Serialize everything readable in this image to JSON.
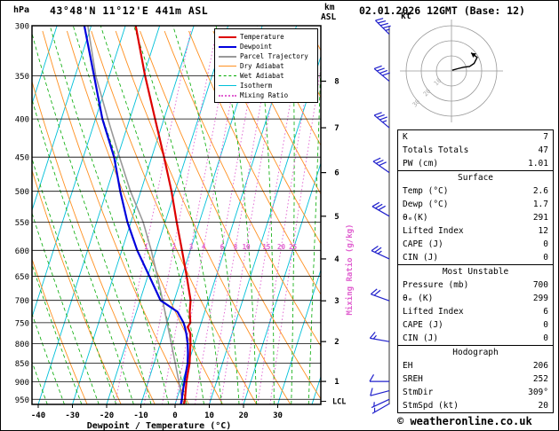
{
  "header": {
    "pressure_unit": "hPa",
    "station": "43°48'N 11°12'E 441m ASL",
    "km_label": "km",
    "asl_label": "ASL",
    "datetime": "02.01.2026 12GMT (Base: 12)"
  },
  "chart_data": {
    "type": "skewt_log_p_sounding",
    "colors": {
      "temperature": "#dd0000",
      "dewpoint": "#0000dd",
      "parcel": "#999999",
      "dry_adiabat": "#ff9020",
      "wet_adiabat": "#00aa00",
      "isotherm": "#00c0d8",
      "mixing_ratio": "#e060d0",
      "wind": "#2020cc"
    },
    "pressure_axis": {
      "unit": "hPa",
      "ticks": [
        300,
        350,
        400,
        450,
        500,
        550,
        600,
        650,
        700,
        750,
        800,
        850,
        900,
        950
      ]
    },
    "temp_axis": {
      "label": "Dewpoint / Temperature (°C)",
      "ticks": [
        -40,
        -30,
        -20,
        -10,
        0,
        10,
        20,
        30
      ]
    },
    "km_axis": {
      "ticks": [
        1,
        2,
        3,
        4,
        5,
        6,
        7,
        8
      ],
      "lcl_label": "LCL"
    },
    "mixing_ratio": {
      "label": "Mixing Ratio (g/kg)",
      "values": [
        1,
        2,
        3,
        4,
        6,
        8,
        10,
        15,
        20,
        25
      ]
    },
    "legend": [
      {
        "label": "Temperature",
        "color": "#dd0000",
        "style": "solid",
        "weight": 2
      },
      {
        "label": "Dewpoint",
        "color": "#0000dd",
        "style": "solid",
        "weight": 2
      },
      {
        "label": "Parcel Trajectory",
        "color": "#999999",
        "style": "solid",
        "weight": 2
      },
      {
        "label": "Dry Adiabat",
        "color": "#ff9020",
        "style": "solid",
        "weight": 1
      },
      {
        "label": "Wet Adiabat",
        "color": "#00aa00",
        "style": "dashed",
        "weight": 1
      },
      {
        "label": "Isotherm",
        "color": "#00c0d8",
        "style": "solid",
        "weight": 1
      },
      {
        "label": "Mixing Ratio",
        "color": "#e060d0",
        "style": "dotted",
        "weight": 2
      }
    ],
    "series": {
      "temp_pressure": [
        965,
        950,
        925,
        900,
        875,
        850,
        825,
        800,
        775,
        760,
        750,
        725,
        700,
        650,
        600,
        550,
        500,
        450,
        400,
        350,
        300
      ],
      "temperature": [
        2.6,
        2.4,
        1.8,
        1.2,
        0.8,
        0.4,
        -0.4,
        -1.2,
        -2.2,
        -3.6,
        -3.2,
        -4.4,
        -5.2,
        -8.6,
        -12.4,
        -16.6,
        -21.0,
        -26.4,
        -32.6,
        -39.6,
        -47.0
      ],
      "dew_pressure": [
        965,
        950,
        925,
        900,
        875,
        850,
        825,
        800,
        775,
        760,
        750,
        725,
        700,
        650,
        600,
        550,
        500,
        450,
        400,
        350,
        300
      ],
      "dewpoint": [
        1.7,
        1.5,
        1.0,
        0.6,
        0.2,
        -0.2,
        -1.0,
        -2.0,
        -3.4,
        -4.4,
        -5.2,
        -8.0,
        -14.0,
        -19.5,
        -25.5,
        -31.0,
        -36.0,
        -41.0,
        -48.0,
        -54.5,
        -62.0
      ],
      "parcel_pressure": [
        965,
        950,
        900,
        850,
        800,
        750,
        700,
        650,
        600,
        550,
        500,
        450,
        400,
        350,
        300
      ],
      "parcel_temp": [
        2.6,
        1.6,
        -1.0,
        -3.8,
        -6.8,
        -10.0,
        -13.4,
        -17.2,
        -21.4,
        -26.4,
        -33.0,
        -39.4,
        -46.4,
        -54.0,
        -61.0
      ]
    },
    "surface": {
      "temp_c": 2.6,
      "dewp_c": 1.7,
      "lcl_pressure": 956
    },
    "wind_barbs": [
      {
        "p": 308,
        "dir": 315,
        "kt": 45
      },
      {
        "p": 356,
        "dir": 310,
        "kt": 40
      },
      {
        "p": 411,
        "dir": 310,
        "kt": 35
      },
      {
        "p": 472,
        "dir": 305,
        "kt": 30
      },
      {
        "p": 540,
        "dir": 300,
        "kt": 30
      },
      {
        "p": 616,
        "dir": 295,
        "kt": 25
      },
      {
        "p": 701,
        "dir": 290,
        "kt": 20
      },
      {
        "p": 795,
        "dir": 280,
        "kt": 15
      },
      {
        "p": 899,
        "dir": 270,
        "kt": 10
      },
      {
        "p": 925,
        "dir": 255,
        "kt": 10
      },
      {
        "p": 950,
        "dir": 245,
        "kt": 5
      },
      {
        "p": 963,
        "dir": 240,
        "kt": 5
      }
    ],
    "hodograph": {
      "unit": "kt",
      "rings": [
        10,
        20,
        30
      ],
      "trace": [
        [
          0.5,
          0.5
        ],
        [
          4,
          1.5
        ],
        [
          8,
          2.5
        ],
        [
          12,
          3
        ],
        [
          15,
          5
        ],
        [
          17,
          9
        ],
        [
          13,
          12
        ]
      ],
      "storm_dir_deg": 309,
      "storm_speed_kt": 20
    }
  },
  "tables": [
    {
      "name": "indices-table",
      "title": null,
      "rows": [
        [
          "K",
          "7"
        ],
        [
          "Totals Totals",
          "47"
        ],
        [
          "PW (cm)",
          "1.01"
        ]
      ]
    },
    {
      "name": "surface-table",
      "title": "Surface",
      "rows": [
        [
          "Temp (°C)",
          "2.6"
        ],
        [
          "Dewp (°C)",
          "1.7"
        ],
        [
          "θₑ(K)",
          "291"
        ],
        [
          "Lifted Index",
          "12"
        ],
        [
          "CAPE (J)",
          "0"
        ],
        [
          "CIN (J)",
          "0"
        ]
      ]
    },
    {
      "name": "most-unstable-table",
      "title": "Most Unstable",
      "rows": [
        [
          "Pressure (mb)",
          "700"
        ],
        [
          "θₑ (K)",
          "299"
        ],
        [
          "Lifted Index",
          "6"
        ],
        [
          "CAPE (J)",
          "0"
        ],
        [
          "CIN (J)",
          "0"
        ]
      ]
    },
    {
      "name": "hodograph-table",
      "title": "Hodograph",
      "rows": [
        [
          "EH",
          "206"
        ],
        [
          "SREH",
          "252"
        ],
        [
          "StmDir",
          "309°"
        ],
        [
          "StmSpd (kt)",
          "20"
        ]
      ]
    }
  ],
  "footer": {
    "copyright": "© weatheronline.co.uk"
  }
}
